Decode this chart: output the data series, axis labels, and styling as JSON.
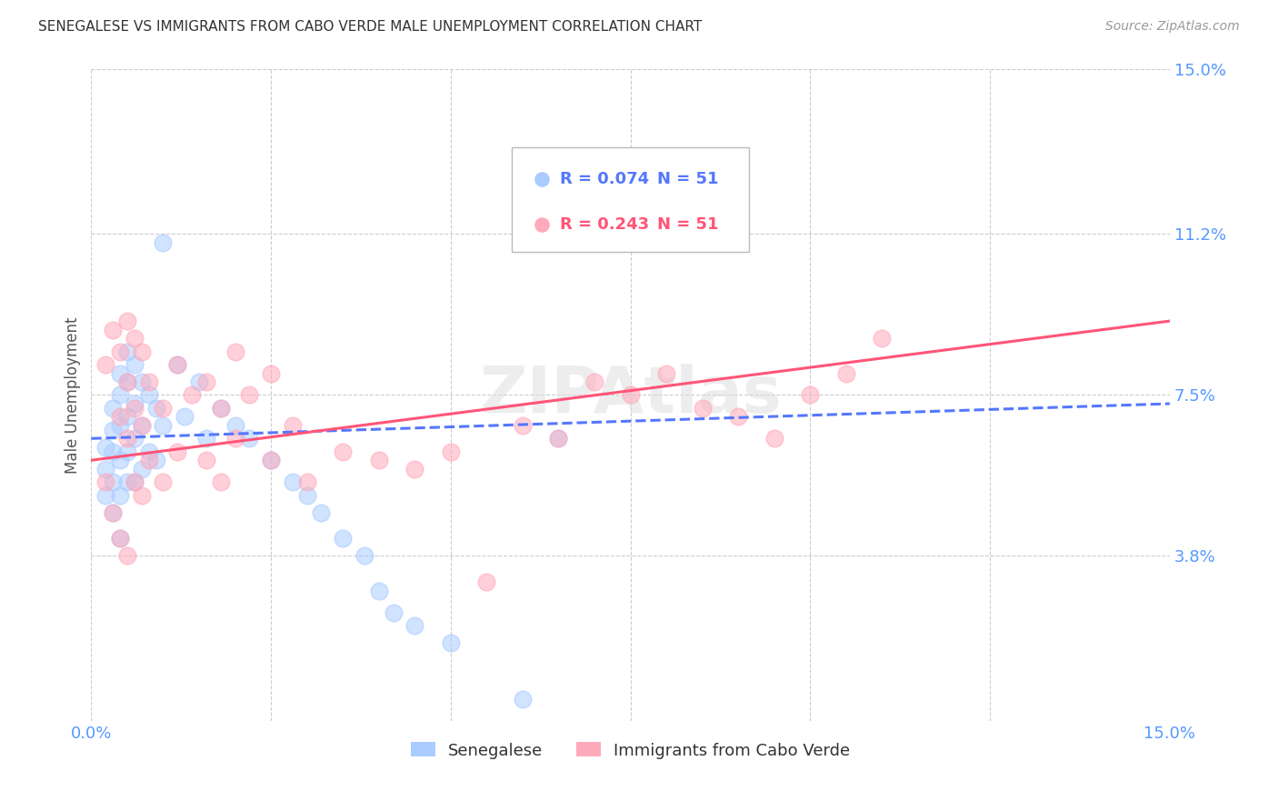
{
  "title": "SENEGALESE VS IMMIGRANTS FROM CABO VERDE MALE UNEMPLOYMENT CORRELATION CHART",
  "source": "Source: ZipAtlas.com",
  "ylabel": "Male Unemployment",
  "xlim": [
    0.0,
    0.15
  ],
  "ylim": [
    0.0,
    0.15
  ],
  "ytick_vals": [
    0.0,
    0.038,
    0.075,
    0.112,
    0.15
  ],
  "ytick_labels": [
    "",
    "3.8%",
    "7.5%",
    "11.2%",
    "15.0%"
  ],
  "xtick_vals": [
    0.0,
    0.025,
    0.05,
    0.075,
    0.1,
    0.125,
    0.15
  ],
  "xtick_labels": [
    "0.0%",
    "",
    "",
    "",
    "",
    "",
    "15.0%"
  ],
  "grid_color": "#cccccc",
  "background_color": "#ffffff",
  "title_color": "#333333",
  "axis_label_color": "#555555",
  "tick_label_color": "#5599ff",
  "senegalese_color": "#aaccff",
  "cabo_verde_color": "#ffaabb",
  "senegalese_line_color": "#5577ff",
  "cabo_verde_line_color": "#ff5577",
  "R_senegalese": 0.074,
  "N_senegalese": 51,
  "R_cabo_verde": 0.243,
  "N_cabo_verde": 51,
  "watermark": "ZIPAtlas",
  "senegalese_x": [
    0.002,
    0.002,
    0.002,
    0.003,
    0.003,
    0.003,
    0.003,
    0.003,
    0.004,
    0.004,
    0.004,
    0.004,
    0.004,
    0.004,
    0.005,
    0.005,
    0.005,
    0.005,
    0.005,
    0.006,
    0.006,
    0.006,
    0.006,
    0.007,
    0.007,
    0.007,
    0.008,
    0.008,
    0.009,
    0.009,
    0.01,
    0.01,
    0.012,
    0.013,
    0.015,
    0.016,
    0.018,
    0.02,
    0.022,
    0.025,
    0.028,
    0.03,
    0.032,
    0.035,
    0.038,
    0.04,
    0.042,
    0.045,
    0.05,
    0.06,
    0.065
  ],
  "senegalese_y": [
    0.063,
    0.058,
    0.052,
    0.072,
    0.067,
    0.062,
    0.055,
    0.048,
    0.08,
    0.075,
    0.068,
    0.06,
    0.052,
    0.042,
    0.085,
    0.078,
    0.07,
    0.062,
    0.055,
    0.082,
    0.073,
    0.065,
    0.055,
    0.078,
    0.068,
    0.058,
    0.075,
    0.062,
    0.072,
    0.06,
    0.11,
    0.068,
    0.082,
    0.07,
    0.078,
    0.065,
    0.072,
    0.068,
    0.065,
    0.06,
    0.055,
    0.052,
    0.048,
    0.042,
    0.038,
    0.03,
    0.025,
    0.022,
    0.018,
    0.005,
    0.065
  ],
  "cabo_verde_x": [
    0.002,
    0.002,
    0.003,
    0.003,
    0.004,
    0.004,
    0.004,
    0.005,
    0.005,
    0.005,
    0.005,
    0.006,
    0.006,
    0.006,
    0.007,
    0.007,
    0.007,
    0.008,
    0.008,
    0.01,
    0.01,
    0.012,
    0.012,
    0.014,
    0.016,
    0.016,
    0.018,
    0.018,
    0.02,
    0.02,
    0.022,
    0.025,
    0.025,
    0.028,
    0.03,
    0.035,
    0.04,
    0.045,
    0.05,
    0.055,
    0.06,
    0.065,
    0.07,
    0.075,
    0.08,
    0.085,
    0.09,
    0.095,
    0.1,
    0.105,
    0.11
  ],
  "cabo_verde_y": [
    0.082,
    0.055,
    0.09,
    0.048,
    0.085,
    0.07,
    0.042,
    0.092,
    0.078,
    0.065,
    0.038,
    0.088,
    0.072,
    0.055,
    0.085,
    0.068,
    0.052,
    0.078,
    0.06,
    0.072,
    0.055,
    0.082,
    0.062,
    0.075,
    0.078,
    0.06,
    0.072,
    0.055,
    0.085,
    0.065,
    0.075,
    0.08,
    0.06,
    0.068,
    0.055,
    0.062,
    0.06,
    0.058,
    0.062,
    0.032,
    0.068,
    0.065,
    0.078,
    0.075,
    0.08,
    0.072,
    0.07,
    0.065,
    0.075,
    0.08,
    0.088
  ]
}
